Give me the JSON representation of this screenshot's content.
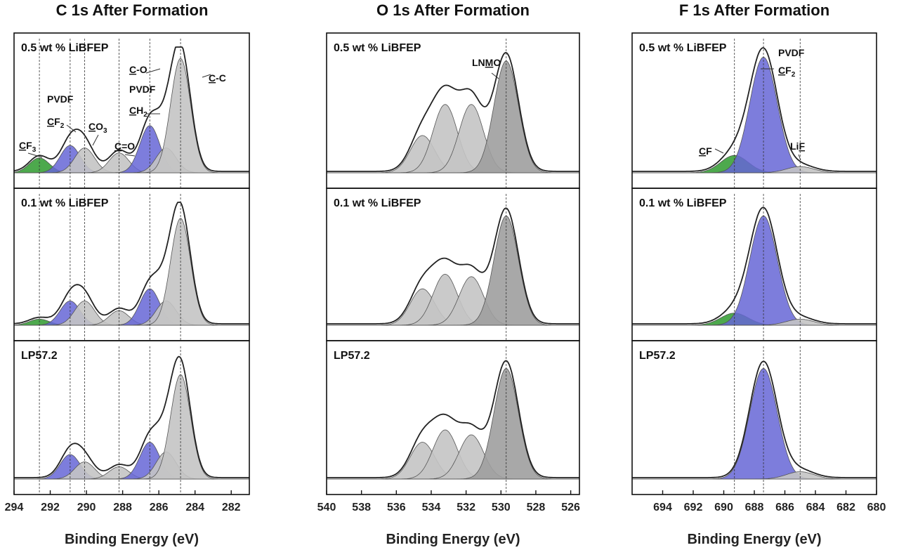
{
  "chart_data": [
    {
      "type": "line",
      "title": "C 1s After Formation",
      "xlabel": "Binding Energy (eV)",
      "xlim": [
        294,
        281
      ],
      "xticks": [
        294,
        292,
        290,
        288,
        286,
        284,
        282
      ],
      "ylabel": "",
      "grid": false,
      "panels": [
        {
          "label": "0.5 wt % LiBFEP",
          "peaks": [
            {
              "center": 292.6,
              "height": 0.12,
              "color": "green"
            },
            {
              "center": 290.9,
              "height": 0.22,
              "color": "blue"
            },
            {
              "center": 290.1,
              "height": 0.2,
              "color": "gray"
            },
            {
              "center": 288.2,
              "height": 0.16,
              "color": "gray"
            },
            {
              "center": 286.5,
              "height": 0.38,
              "color": "blue"
            },
            {
              "center": 285.6,
              "height": 0.2,
              "color": "gray"
            },
            {
              "center": 284.8,
              "height": 0.92,
              "color": "gray"
            }
          ]
        },
        {
          "label": "0.1 wt % LiBFEP",
          "peaks": [
            {
              "center": 292.6,
              "height": 0.05,
              "color": "green"
            },
            {
              "center": 290.9,
              "height": 0.2,
              "color": "blue"
            },
            {
              "center": 290.1,
              "height": 0.2,
              "color": "gray"
            },
            {
              "center": 288.2,
              "height": 0.12,
              "color": "gray"
            },
            {
              "center": 286.5,
              "height": 0.3,
              "color": "blue"
            },
            {
              "center": 285.6,
              "height": 0.2,
              "color": "gray"
            },
            {
              "center": 284.8,
              "height": 0.88,
              "color": "gray"
            }
          ]
        },
        {
          "label": "LP57.2",
          "peaks": [
            {
              "center": 290.9,
              "height": 0.2,
              "color": "blue"
            },
            {
              "center": 290.1,
              "height": 0.14,
              "color": "gray"
            },
            {
              "center": 288.2,
              "height": 0.1,
              "color": "gray"
            },
            {
              "center": 286.5,
              "height": 0.3,
              "color": "blue"
            },
            {
              "center": 285.6,
              "height": 0.22,
              "color": "gray"
            },
            {
              "center": 284.8,
              "height": 0.85,
              "color": "gray"
            }
          ]
        }
      ],
      "dropLines": [
        292.6,
        290.9,
        290.1,
        288.2,
        286.5,
        284.8
      ],
      "annotations": [
        {
          "pre": "",
          "u": "C",
          "post": "F",
          "sub": "3"
        },
        {
          "text": "PVDF"
        },
        {
          "pre": "",
          "u": "C",
          "post": "F",
          "sub": "2"
        },
        {
          "pre": "",
          "u": "C",
          "post": "O",
          "sub": "3"
        },
        {
          "pre": "",
          "u": "C",
          "post": "=O",
          "sub": ""
        },
        {
          "pre": "",
          "u": "C",
          "post": "-O",
          "sub": ""
        },
        {
          "text": "PVDF"
        },
        {
          "pre": "",
          "u": "C",
          "post": "H",
          "sub": "2"
        },
        {
          "pre": "",
          "u": "C",
          "post": "-C",
          "sub": ""
        }
      ]
    },
    {
      "type": "line",
      "title": "O 1s After Formation",
      "xlabel": "Binding Energy (eV)",
      "xlim": [
        540,
        525.5
      ],
      "xticks": [
        540,
        538,
        536,
        534,
        532,
        530,
        528,
        526
      ],
      "ylabel": "",
      "grid": false,
      "panels": [
        {
          "label": "0.5 wt % LiBFEP",
          "peaks": [
            {
              "center": 534.5,
              "height": 0.3,
              "color": "gray"
            },
            {
              "center": 533.2,
              "height": 0.55,
              "color": "gray"
            },
            {
              "center": 531.7,
              "height": 0.55,
              "color": "gray"
            },
            {
              "center": 529.7,
              "height": 0.9,
              "color": "darkgray"
            }
          ]
        },
        {
          "label": "0.1 wt % LiBFEP",
          "peaks": [
            {
              "center": 534.5,
              "height": 0.3,
              "color": "gray"
            },
            {
              "center": 533.2,
              "height": 0.42,
              "color": "gray"
            },
            {
              "center": 531.7,
              "height": 0.4,
              "color": "gray"
            },
            {
              "center": 529.7,
              "height": 0.9,
              "color": "darkgray"
            }
          ]
        },
        {
          "label": "LP57.2",
          "peaks": [
            {
              "center": 534.5,
              "height": 0.3,
              "color": "gray"
            },
            {
              "center": 533.2,
              "height": 0.4,
              "color": "gray"
            },
            {
              "center": 531.7,
              "height": 0.36,
              "color": "gray"
            },
            {
              "center": 529.7,
              "height": 0.9,
              "color": "darkgray"
            }
          ]
        }
      ],
      "dropLines": [
        529.7
      ],
      "annotations": [
        {
          "pre": "LN",
          "u": "M",
          "post": "O",
          "sub": ""
        }
      ]
    },
    {
      "type": "line",
      "title": "F 1s After Formation",
      "xlabel": "Binding Energy (eV)",
      "xlim": [
        696,
        680
      ],
      "xticks": [
        694,
        692,
        690,
        688,
        686,
        684,
        682,
        680
      ],
      "ylabel": "",
      "grid": false,
      "panels": [
        {
          "label": "0.5 wt % LiBFEP",
          "peaks": [
            {
              "center": 689.3,
              "height": 0.14,
              "color": "green"
            },
            {
              "center": 687.4,
              "height": 0.93,
              "color": "blue"
            },
            {
              "center": 685.0,
              "height": 0.05,
              "color": "gray"
            }
          ]
        },
        {
          "label": "0.1 wt % LiBFEP",
          "peaks": [
            {
              "center": 689.3,
              "height": 0.1,
              "color": "green"
            },
            {
              "center": 687.4,
              "height": 0.9,
              "color": "blue"
            },
            {
              "center": 685.0,
              "height": 0.05,
              "color": "gray"
            }
          ]
        },
        {
          "label": "LP57.2",
          "peaks": [
            {
              "center": 687.4,
              "height": 0.9,
              "color": "blue"
            },
            {
              "center": 685.0,
              "height": 0.06,
              "color": "gray"
            }
          ]
        }
      ],
      "dropLines": [
        689.3,
        687.4,
        685.0
      ],
      "annotations": [
        {
          "text": "PVDF"
        },
        {
          "pre": "",
          "u": "C",
          "post": "F",
          "sub": "2"
        },
        {
          "pre": "",
          "u": "C",
          "post": "F",
          "sub": ""
        },
        {
          "pre": "Li",
          "u": "F",
          "post": "",
          "sub": ""
        }
      ]
    }
  ],
  "colors": {
    "blue": "#6666d6",
    "blue_edge": "#3b3bb0",
    "green": "#3aa03a",
    "gray": "#c4c4c4",
    "darkgray": "#9e9e9e",
    "envelope": "#222222"
  }
}
